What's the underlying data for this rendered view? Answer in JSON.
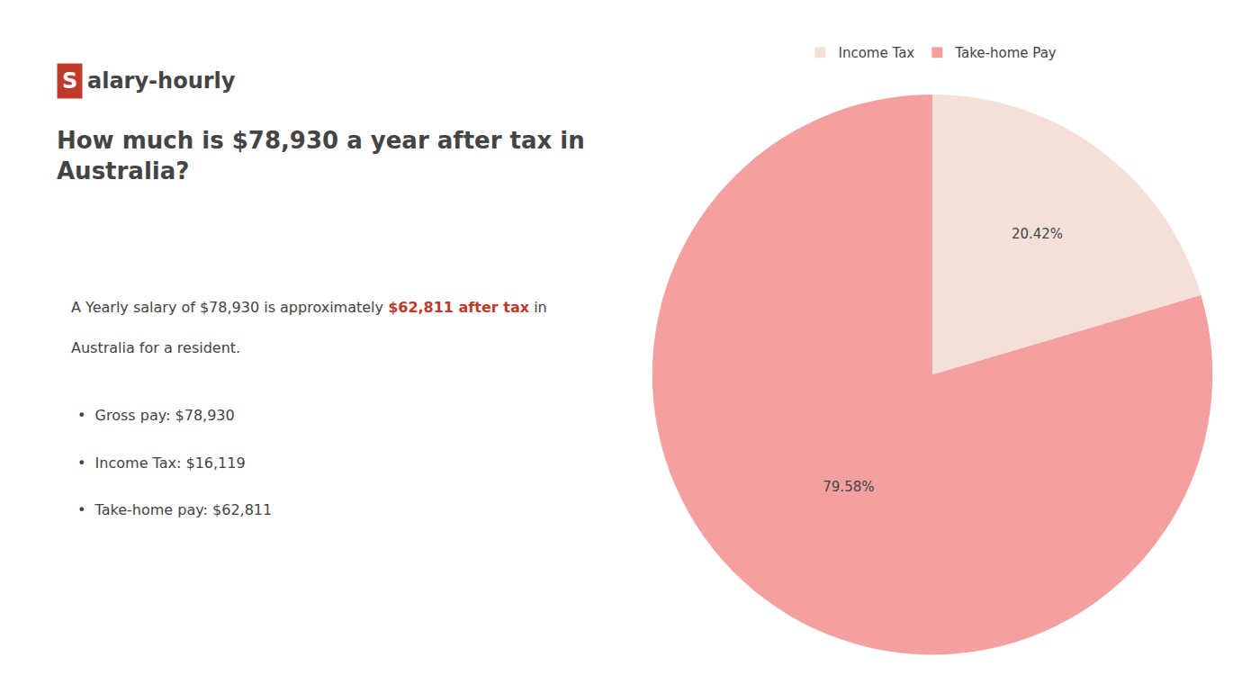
{
  "chart_data": {
    "type": "pie",
    "title": "How much is $78,930 a year after tax in\nAustralia?",
    "categories": [
      "Income Tax",
      "Take-home Pay"
    ],
    "values": [
      20.42,
      79.58
    ],
    "value_labels": [
      "20.42%",
      "79.58%"
    ],
    "colors": [
      "#f5e0d8",
      "#f4a0a0"
    ],
    "data_labels": true,
    "legend": "top",
    "logo": {
      "text": [
        "S",
        "alary-hourly"
      ],
      "color": "#c0392b"
    },
    "annotations": [
      [
        {
          "text": "A Yearly salary of $78,930 is approximately "
        },
        {
          "text": "$62,811 after tax",
          "color": "#c0392b"
        },
        {
          "text": " in"
        }
      ],
      [
        {
          "text": "Australia for a resident."
        }
      ],
      [
        {
          "text": "•  Gross pay: $78,930"
        }
      ],
      [
        {
          "text": "•  Income Tax: $16,119"
        }
      ],
      [
        {
          "text": "•  Take-home pay: $62,811"
        }
      ]
    ]
  }
}
